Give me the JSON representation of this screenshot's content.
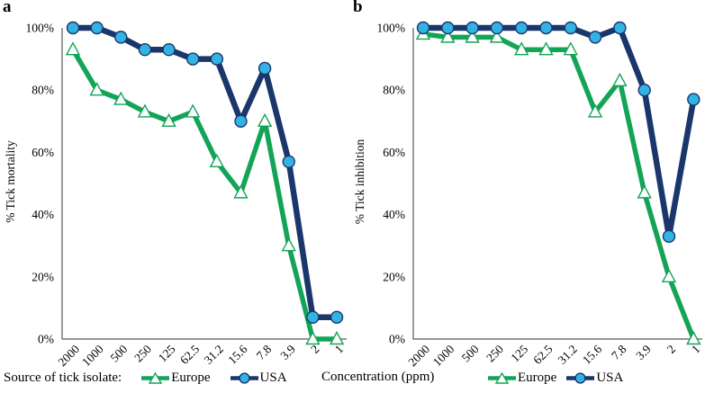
{
  "x_axis_title": "Concentration (ppm)",
  "legend": {
    "source_label": "Source of tick isolate:",
    "europe_label": "Europe",
    "usa_label": "USA"
  },
  "colors": {
    "europe_green": "#13a457",
    "usa_navy": "#1a366b",
    "usa_marker_fill": "#33b3e3",
    "europe_marker_fill": "#ffffff",
    "y_axis_line": "#595959",
    "x_axis_line": "#595959",
    "text": "#000000"
  },
  "chart_data": [
    {
      "type": "line",
      "panel_label": "a",
      "ylabel": "% Tick mortality",
      "xlabel": "Concentration (ppm)",
      "categories": [
        "2000",
        "1000",
        "500",
        "250",
        "125",
        "62.5",
        "31.2",
        "15.6",
        "7.8",
        "3.9",
        "2",
        "1"
      ],
      "y_ticks": [
        "100%",
        "80%",
        "60%",
        "40%",
        "20%",
        "0%"
      ],
      "ylim": [
        0,
        100
      ],
      "grid": false,
      "legend_position": "bottom-left",
      "series": [
        {
          "name": "Europe",
          "marker": "triangle",
          "color": "#13a457",
          "marker_fill": "#ffffff",
          "values": [
            93,
            80,
            77,
            73,
            70,
            73,
            57,
            47,
            70,
            30,
            0,
            0
          ]
        },
        {
          "name": "USA",
          "marker": "circle",
          "color": "#1a366b",
          "marker_fill": "#33b3e3",
          "values": [
            100,
            100,
            97,
            93,
            93,
            90,
            90,
            70,
            87,
            57,
            7,
            7
          ]
        }
      ]
    },
    {
      "type": "line",
      "panel_label": "b",
      "ylabel": "% Tick inhibition",
      "xlabel": "Concentration (ppm)",
      "categories": [
        "2000",
        "1000",
        "500",
        "250",
        "125",
        "62.5",
        "31.2",
        "15.6",
        "7.8",
        "3.9",
        "2",
        "1"
      ],
      "y_ticks": [
        "100%",
        "80%",
        "60%",
        "40%",
        "20%",
        "0%"
      ],
      "ylim": [
        0,
        100
      ],
      "grid": false,
      "legend_position": "bottom",
      "series": [
        {
          "name": "Europe",
          "marker": "triangle",
          "color": "#13a457",
          "marker_fill": "#ffffff",
          "values": [
            98,
            97,
            97,
            97,
            93,
            93,
            93,
            73,
            83,
            47,
            20,
            0
          ]
        },
        {
          "name": "USA",
          "marker": "circle",
          "color": "#1a366b",
          "marker_fill": "#33b3e3",
          "values": [
            100,
            100,
            100,
            100,
            100,
            100,
            100,
            97,
            100,
            80,
            33,
            77
          ]
        }
      ]
    }
  ]
}
